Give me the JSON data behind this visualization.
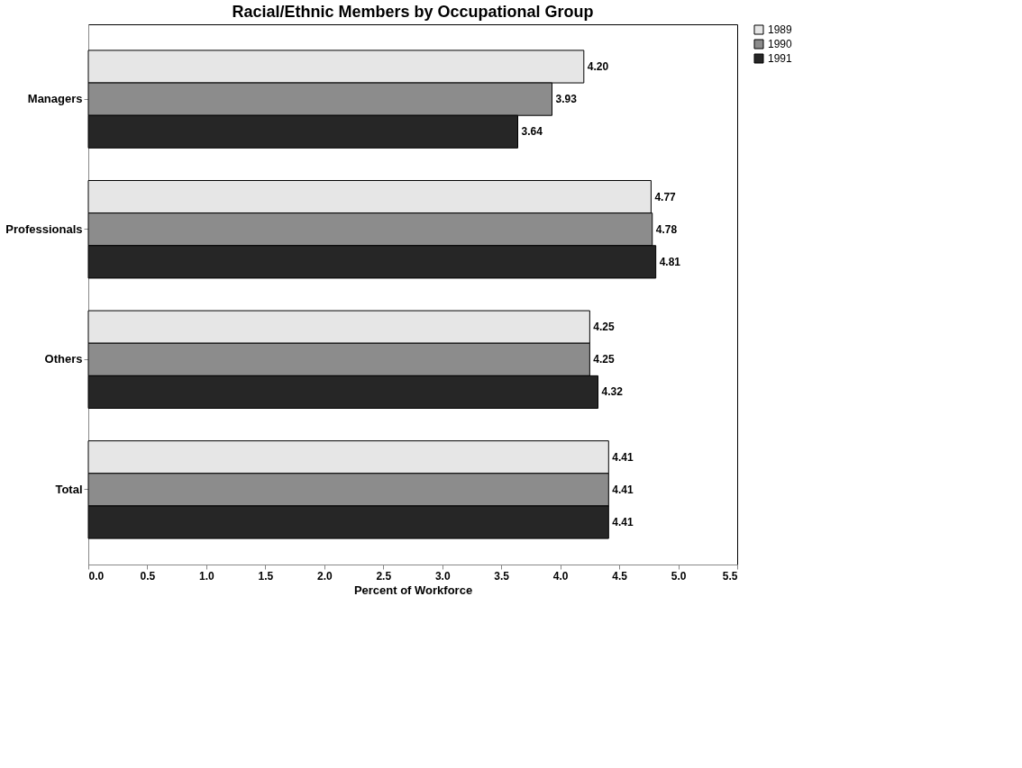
{
  "chart_data": {
    "type": "bar",
    "orientation": "horizontal",
    "title": "Racial/Ethnic Members by Occupational Group",
    "xlabel": "Percent of Workforce",
    "categories": [
      "Managers",
      "Professionals",
      "Others",
      "Total"
    ],
    "series": [
      {
        "name": "1989",
        "color": "#e6e6e6",
        "values": [
          4.2,
          4.77,
          4.25,
          4.41
        ],
        "value_labels": [
          "4.20",
          "4.77",
          "4.25",
          "4.41"
        ]
      },
      {
        "name": "1990",
        "color": "#8c8c8c",
        "values": [
          3.93,
          4.78,
          4.25,
          4.41
        ],
        "value_labels": [
          "3.93",
          "4.78",
          "4.25",
          "4.41"
        ]
      },
      {
        "name": "1991",
        "color": "#262626",
        "values": [
          3.64,
          4.81,
          4.32,
          4.41
        ],
        "value_labels": [
          "3.64",
          "4.81",
          "4.32",
          "4.41"
        ]
      }
    ],
    "xlim": [
      0,
      5.5
    ],
    "xticks": [
      {
        "value": 0,
        "label": "0.0"
      },
      0.5,
      {
        "value": 1,
        "label": "1.0"
      },
      1.5,
      {
        "value": 2,
        "label": "2.0"
      },
      2.5,
      {
        "value": 3,
        "label": "3.0"
      },
      3.5,
      {
        "value": 4,
        "label": "4.0"
      },
      4.5,
      {
        "value": 5,
        "label": "5.0"
      },
      5.5
    ],
    "legend": "right",
    "grid": false
  }
}
